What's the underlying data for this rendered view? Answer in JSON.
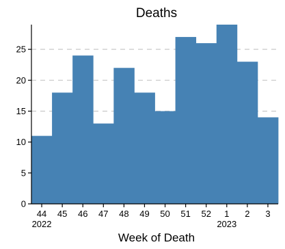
{
  "chart_data": {
    "type": "bar",
    "title": "Deaths",
    "xlabel": "Week of Death",
    "ylabel": "",
    "categories": [
      "44",
      "45",
      "46",
      "47",
      "48",
      "49",
      "50",
      "51",
      "52",
      "1",
      "2",
      "3"
    ],
    "year_labels": [
      {
        "category": "44",
        "label": "2022"
      },
      {
        "category": "1",
        "label": "2023"
      }
    ],
    "values": [
      11,
      18,
      24,
      13,
      22,
      18,
      15,
      27,
      26,
      29,
      23,
      14
    ],
    "ylim": [
      0,
      29
    ],
    "yticks": [
      0,
      5,
      10,
      15,
      20,
      25
    ],
    "grid": "horizontal dashed at 15, 20, 25",
    "bar_color": "#4682b4",
    "grid_color": "#c8c8c8"
  }
}
